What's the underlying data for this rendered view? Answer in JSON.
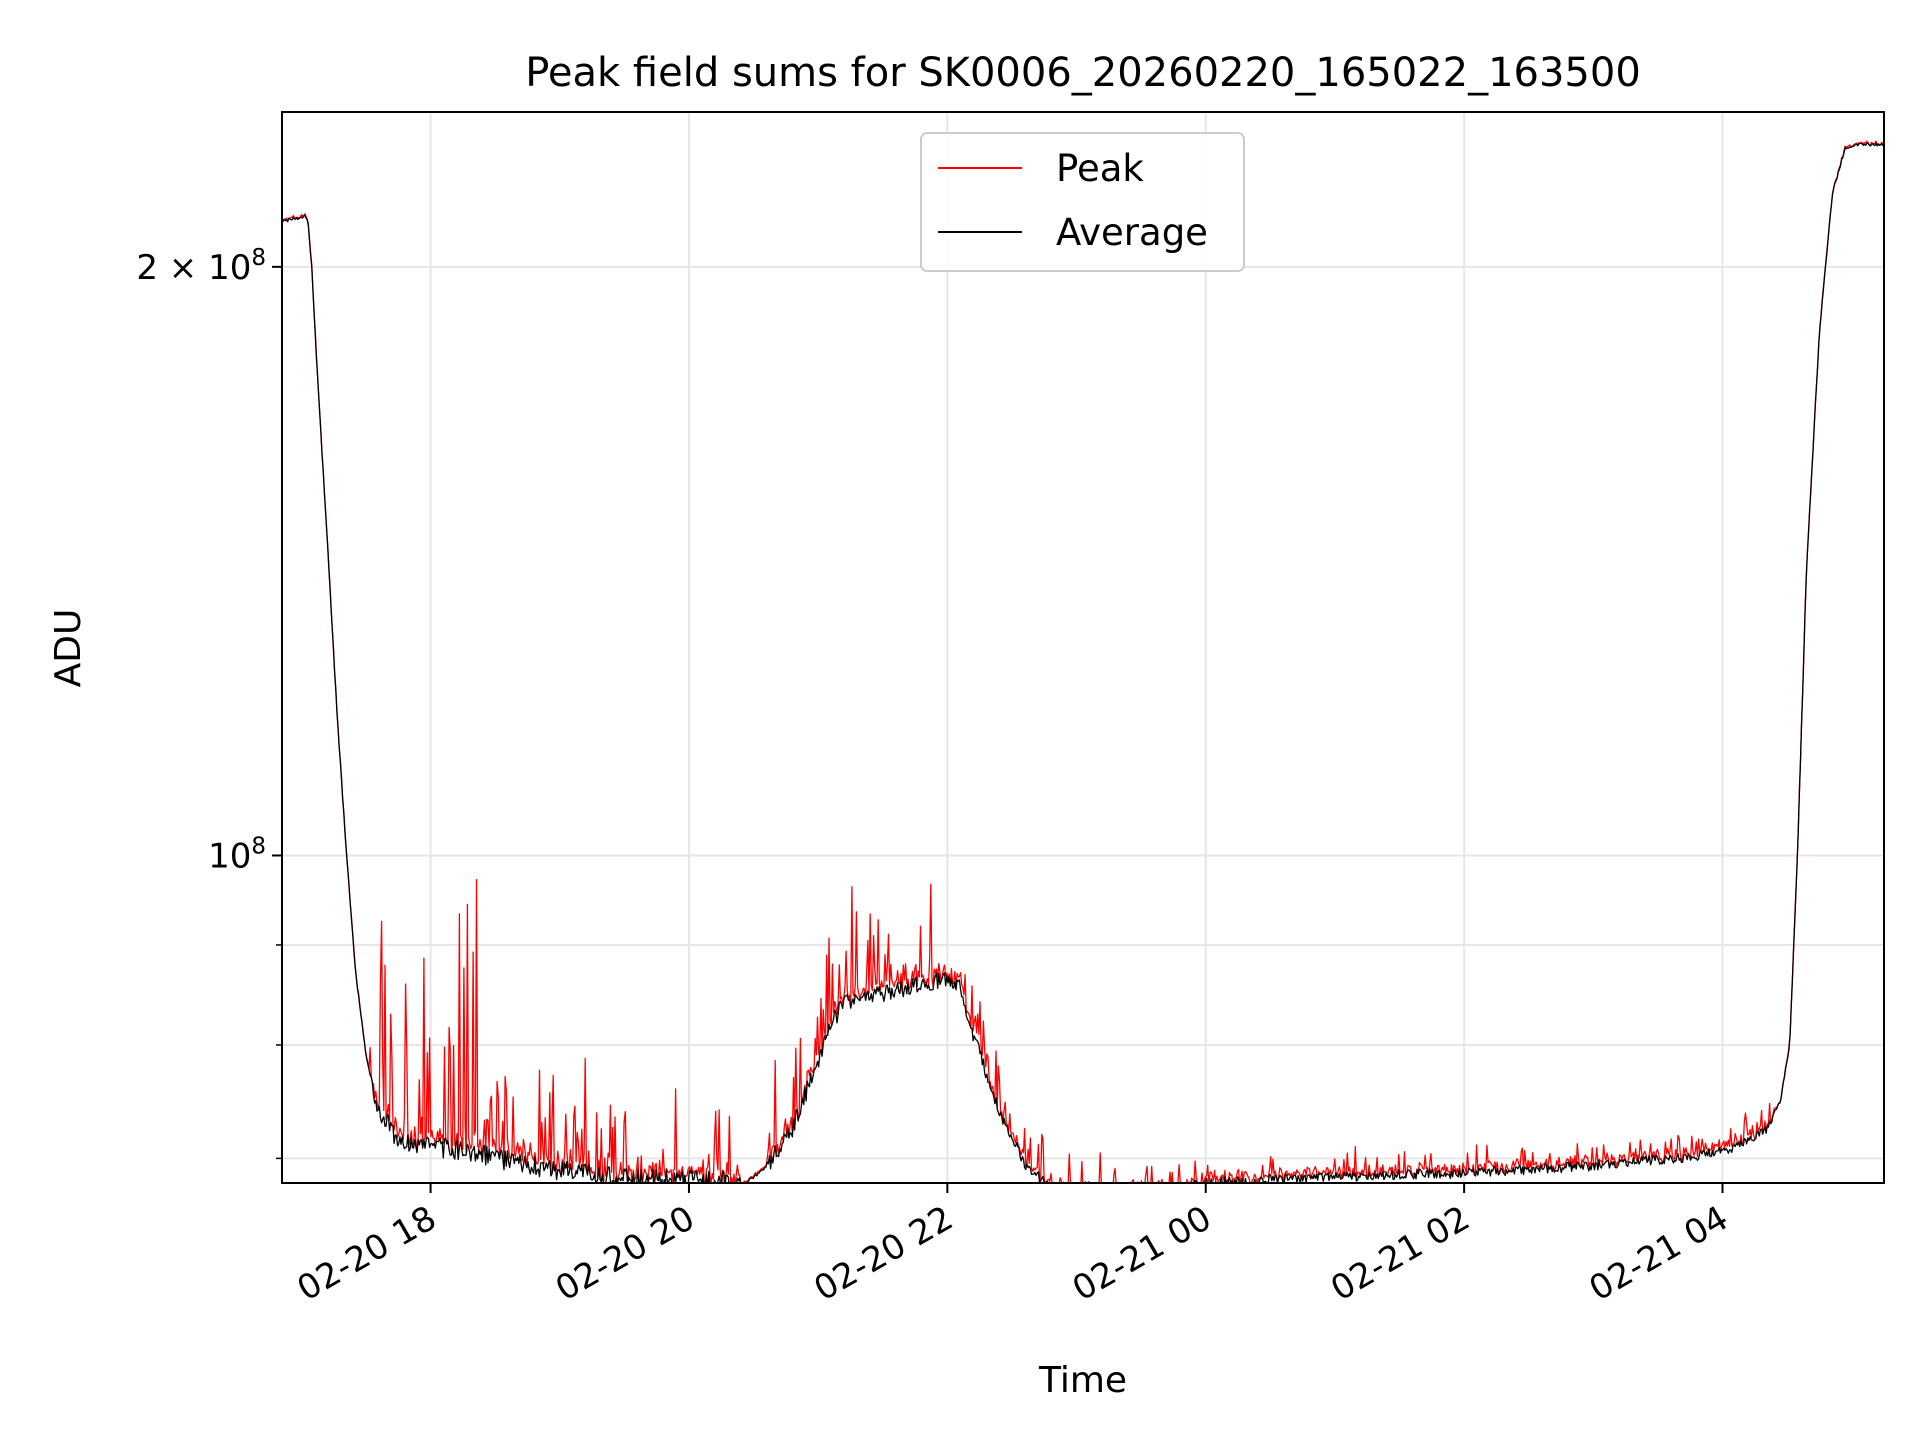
{
  "chart_data": {
    "type": "line",
    "title": "Peak field sums for SK0006_20260220_165022_163500",
    "xlabel": "Time",
    "ylabel": "ADU",
    "x_unit": "hours since 2026-02-20 00:00",
    "xlim": [
      16.85,
      29.25
    ],
    "ylim": [
      68000000,
      240000000
    ],
    "yscale": "log",
    "grid": true,
    "legend_position": "top-center",
    "x_ticks": [
      {
        "value": 18,
        "label": "02-20 18"
      },
      {
        "value": 20,
        "label": "02-20 20"
      },
      {
        "value": 22,
        "label": "02-20 22"
      },
      {
        "value": 24,
        "label": "02-21 00"
      },
      {
        "value": 26,
        "label": "02-21 02"
      },
      {
        "value": 28,
        "label": "02-21 04"
      }
    ],
    "y_major_ticks": [
      {
        "value": 100000000,
        "base": "10",
        "exp": "8",
        "coef": ""
      },
      {
        "value": 200000000,
        "base": "10",
        "exp": "8",
        "coef": "2 × "
      }
    ],
    "y_minor_ticks": [
      70000000,
      80000000,
      90000000
    ],
    "series": [
      {
        "name": "Average",
        "color": "#000000",
        "x": [
          16.85,
          17.0,
          17.02,
          17.05,
          17.08,
          17.12,
          17.2,
          17.28,
          17.35,
          17.42,
          17.5,
          17.6,
          17.75,
          17.9,
          18.0,
          18.3,
          18.6,
          18.9,
          19.2,
          19.5,
          19.8,
          20.0,
          20.2,
          20.35,
          20.4,
          20.45,
          20.6,
          20.8,
          21.0,
          21.1,
          21.2,
          21.5,
          21.8,
          22.0,
          22.1,
          22.2,
          22.4,
          22.6,
          22.8,
          23.0,
          23.2,
          23.5,
          23.8,
          24.0,
          24.5,
          25.0,
          25.5,
          26.0,
          26.5,
          27.0,
          27.5,
          27.8,
          28.0,
          28.2,
          28.35,
          28.45,
          28.52,
          28.58,
          28.65,
          28.75,
          28.85,
          28.95,
          29.05,
          29.25
        ],
        "y": [
          211000000,
          212000000,
          212500000,
          211000000,
          200000000,
          178000000,
          145000000,
          117000000,
          100000000,
          87000000,
          79000000,
          74000000,
          71500000,
          71000000,
          71000000,
          70600000,
          69800000,
          69200000,
          68700000,
          68400000,
          68300000,
          68300000,
          68200000,
          68000000,
          67800000,
          68100000,
          69300000,
          72500000,
          78500000,
          82000000,
          84000000,
          85000000,
          86000000,
          86500000,
          85500000,
          81000000,
          74000000,
          69500000,
          67600000,
          67300000,
          67200000,
          67300000,
          67600000,
          68000000,
          68300000,
          68500000,
          68700000,
          68800000,
          69100000,
          69400000,
          69900000,
          70200000,
          70600000,
          71400000,
          72600000,
          75000000,
          80000000,
          100000000,
          140000000,
          185000000,
          218000000,
          230000000,
          231000000,
          231000000
        ]
      }
    ]
  },
  "legend": {
    "items": [
      {
        "label": "Peak",
        "color": "#ff0000"
      },
      {
        "label": "Average",
        "color": "#000000"
      }
    ]
  }
}
